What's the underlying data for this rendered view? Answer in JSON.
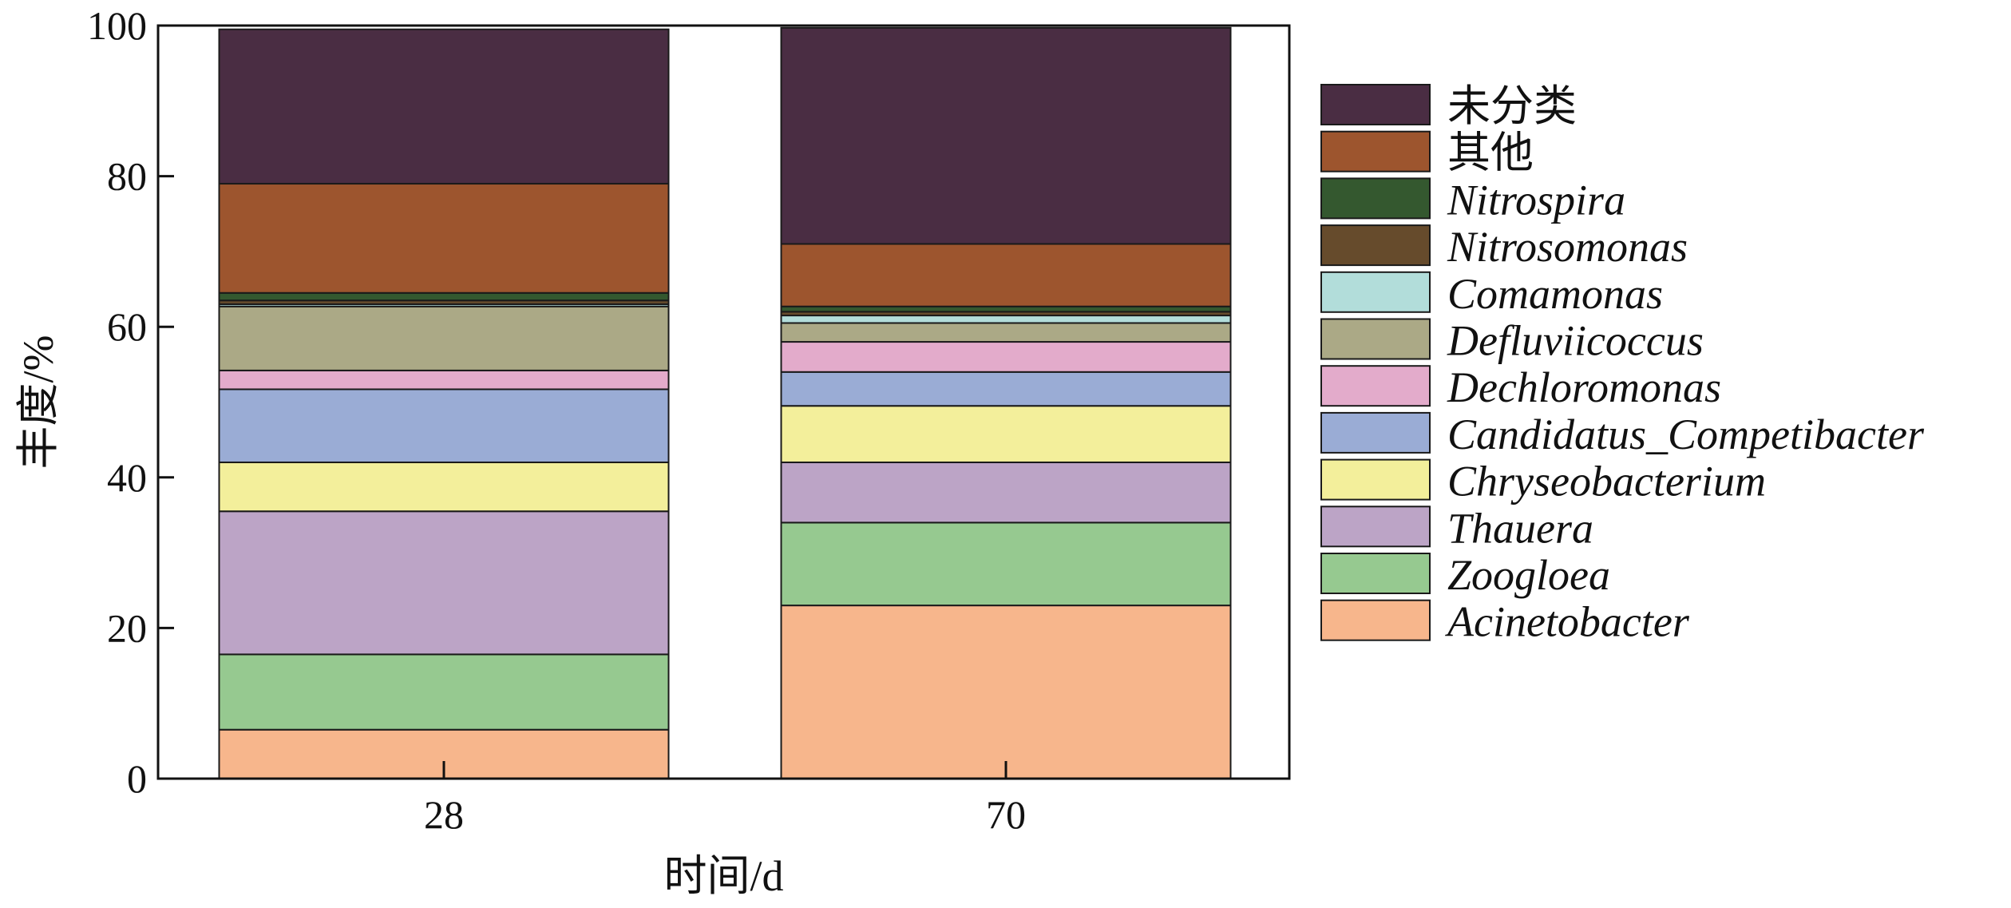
{
  "chart_data": {
    "type": "bar",
    "stacked": true,
    "categories": [
      "28",
      "70"
    ],
    "xlabel": "时间/d",
    "ylabel": "丰度/%",
    "ylim": [
      0,
      100
    ],
    "yticks": [
      0,
      20,
      40,
      60,
      80,
      100
    ],
    "grid": false,
    "legend_position": "right",
    "series": [
      {
        "name": "Acinetobacter",
        "italic": true,
        "color": "#f7b68c",
        "values": [
          6.5,
          23.0
        ]
      },
      {
        "name": "Zoogloea",
        "italic": true,
        "color": "#96c990",
        "values": [
          10.0,
          11.0
        ]
      },
      {
        "name": "Thauera",
        "italic": true,
        "color": "#bca4c6",
        "values": [
          19.0,
          8.0
        ]
      },
      {
        "name": "Chryseobacterium",
        "italic": true,
        "color": "#f3ef9b",
        "values": [
          6.5,
          7.5
        ]
      },
      {
        "name": "Candidatus_Competibacter",
        "italic": true,
        "color": "#9aacd5",
        "values": [
          9.7,
          4.5
        ]
      },
      {
        "name": "Dechloromonas",
        "italic": true,
        "color": "#e3abcb",
        "values": [
          2.5,
          4.0
        ]
      },
      {
        "name": "Defluviicoccus",
        "italic": true,
        "color": "#aba986",
        "values": [
          8.5,
          2.5
        ]
      },
      {
        "name": "Comamonas",
        "italic": true,
        "color": "#b2ddda",
        "values": [
          0.3,
          1.0
        ]
      },
      {
        "name": "Nitrosomonas",
        "italic": true,
        "color": "#664b2c",
        "values": [
          0.5,
          0.5
        ]
      },
      {
        "name": "Nitrospira",
        "italic": true,
        "color": "#34582f",
        "values": [
          1.0,
          0.7
        ]
      },
      {
        "name": "其他",
        "italic": false,
        "color": "#9d552e",
        "values": [
          14.5,
          8.3
        ]
      },
      {
        "name": "未分类",
        "italic": false,
        "color": "#4a2d43",
        "values": [
          20.5,
          28.7
        ]
      }
    ]
  }
}
